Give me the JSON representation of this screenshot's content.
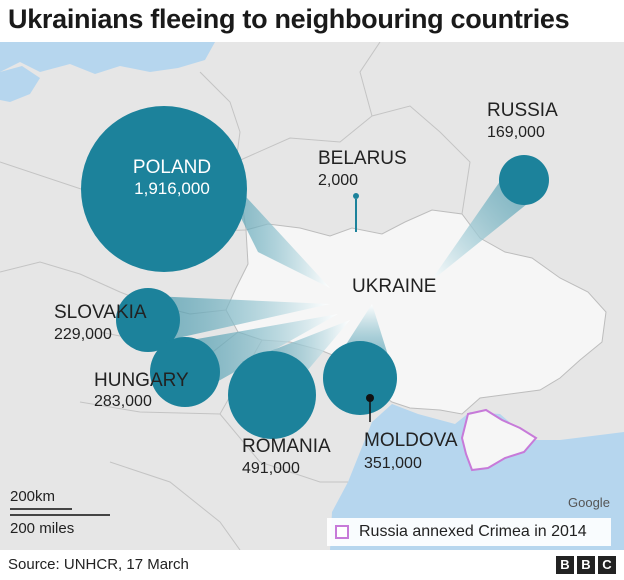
{
  "title": "Ukrainians fleeing to neighbouring countries",
  "countries": [
    {
      "id": "poland",
      "name": "POLAND",
      "refugees": "1,916,000",
      "value": 1916000
    },
    {
      "id": "belarus",
      "name": "BELARUS",
      "refugees": "2,000",
      "value": 2000
    },
    {
      "id": "russia",
      "name": "RUSSIA",
      "refugees": "169,000",
      "value": 169000
    },
    {
      "id": "slovakia",
      "name": "SLOVAKIA",
      "refugees": "229,000",
      "value": 229000
    },
    {
      "id": "hungary",
      "name": "HUNGARY",
      "refugees": "283,000",
      "value": 283000
    },
    {
      "id": "romania",
      "name": "ROMANIA",
      "refugees": "491,000",
      "value": 491000
    },
    {
      "id": "moldova",
      "name": "MOLDOVA",
      "refugees": "351,000",
      "value": 351000
    }
  ],
  "origin_label": "UKRAINE",
  "legend": {
    "crimea": "Russia annexed Crimea in 2014"
  },
  "scale": {
    "km": "200km",
    "miles": "200 miles"
  },
  "attribution": "Google",
  "source": "Source: UNHCR, 17 March",
  "brand": [
    "B",
    "B",
    "C"
  ],
  "colors": {
    "bubble": "#1c829b",
    "flow": "#9fd0db",
    "ukraine": "#f6f6f6",
    "land": "#e6e6e6",
    "water": "#b6d6ee",
    "crimea_border": "#c77ad9"
  }
}
